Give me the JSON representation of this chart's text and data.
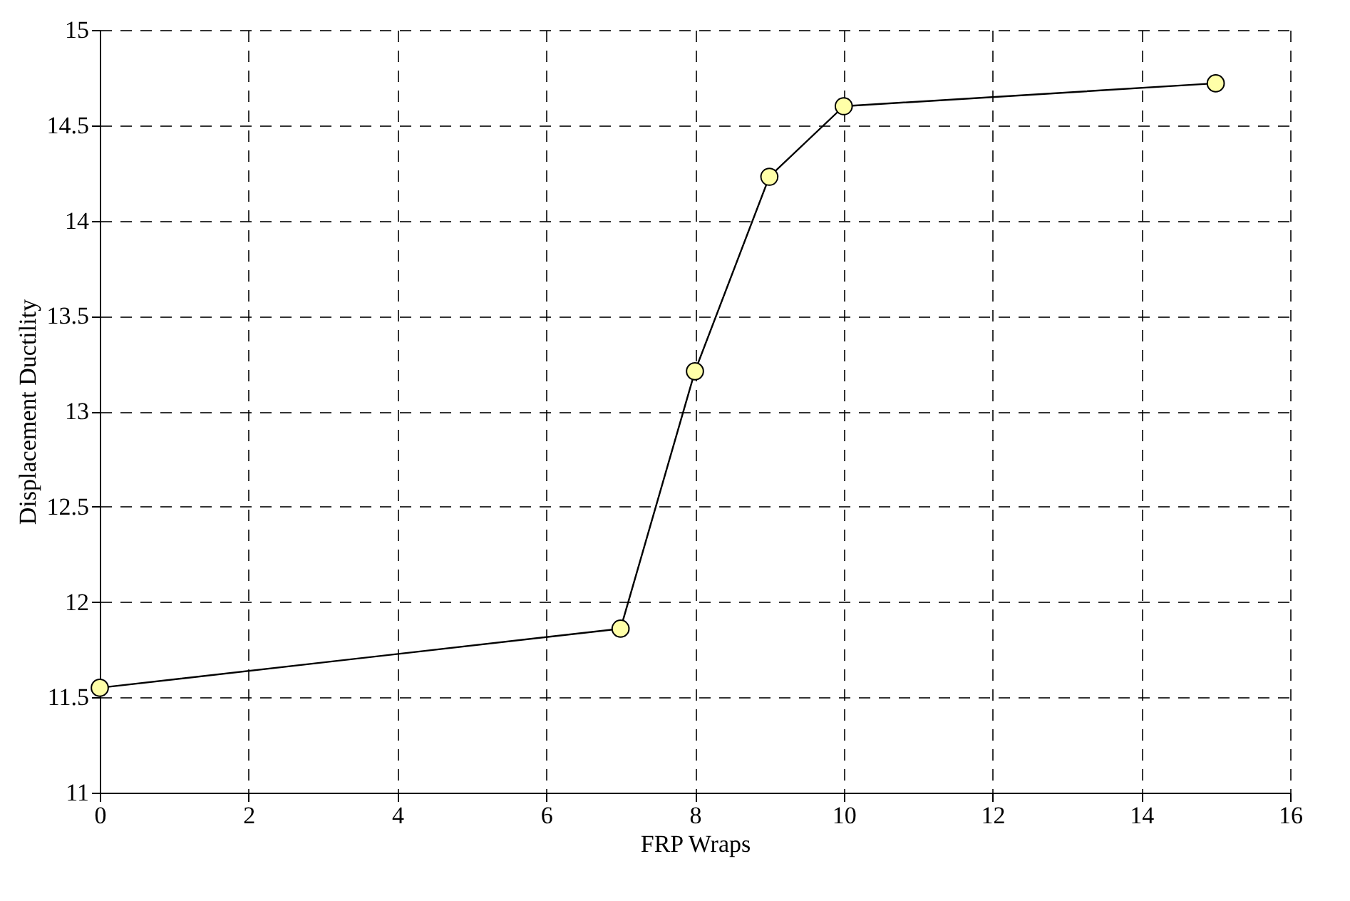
{
  "chart_data": {
    "type": "line",
    "xlabel": "FRP Wraps",
    "ylabel": "Displacement Ductility",
    "x": [
      0,
      7,
      8,
      9,
      10,
      15
    ],
    "series": [
      {
        "color": "#000000",
        "values": [
          11.55,
          11.86,
          13.21,
          14.23,
          14.6,
          14.72
        ]
      }
    ],
    "xlim": [
      0,
      16
    ],
    "xticks": [
      0,
      2,
      4,
      6,
      8,
      10,
      12,
      14,
      16
    ],
    "ylim": [
      11,
      15
    ],
    "yticks": [
      11,
      11.5,
      12,
      12.5,
      13,
      13.5,
      14,
      14.5,
      15
    ],
    "grid": true,
    "marker": "circle",
    "line_style": "solid"
  }
}
